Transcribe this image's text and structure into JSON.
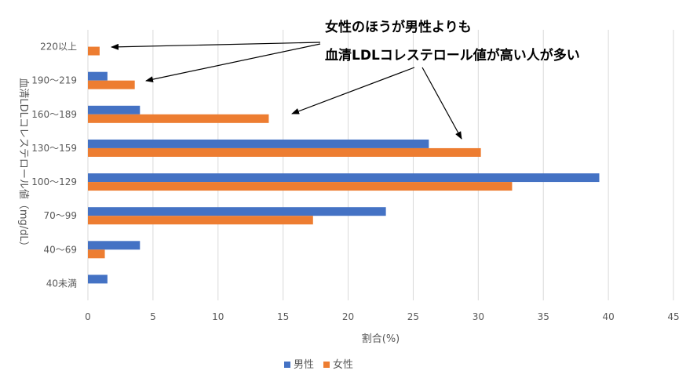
{
  "chart_data": {
    "type": "bar",
    "orientation": "horizontal",
    "categories": [
      "220以上",
      "190〜219",
      "160〜189",
      "130〜159",
      "100〜129",
      "70〜99",
      "40〜69",
      "40未満"
    ],
    "series": [
      {
        "name": "男性",
        "color": "#4472c4",
        "values": [
          0,
          1.5,
          4.0,
          26.2,
          39.3,
          22.9,
          4.0,
          1.5
        ]
      },
      {
        "name": "女性",
        "color": "#ed7d31",
        "values": [
          0.9,
          3.6,
          13.9,
          30.2,
          32.6,
          17.3,
          1.3,
          0
        ]
      }
    ],
    "xlabel": "割合(%)",
    "ylabel": "血清LDLコレステロール値（mg/dL）",
    "xlim": [
      0,
      45
    ],
    "xticks": [
      0,
      5,
      10,
      15,
      20,
      25,
      30,
      35,
      40,
      45
    ],
    "grid": true,
    "legend_position": "bottom",
    "annotation": {
      "lines": [
        "女性のほうが男性よりも",
        "血清LDLコレステロール値が高い人が多い"
      ]
    }
  }
}
